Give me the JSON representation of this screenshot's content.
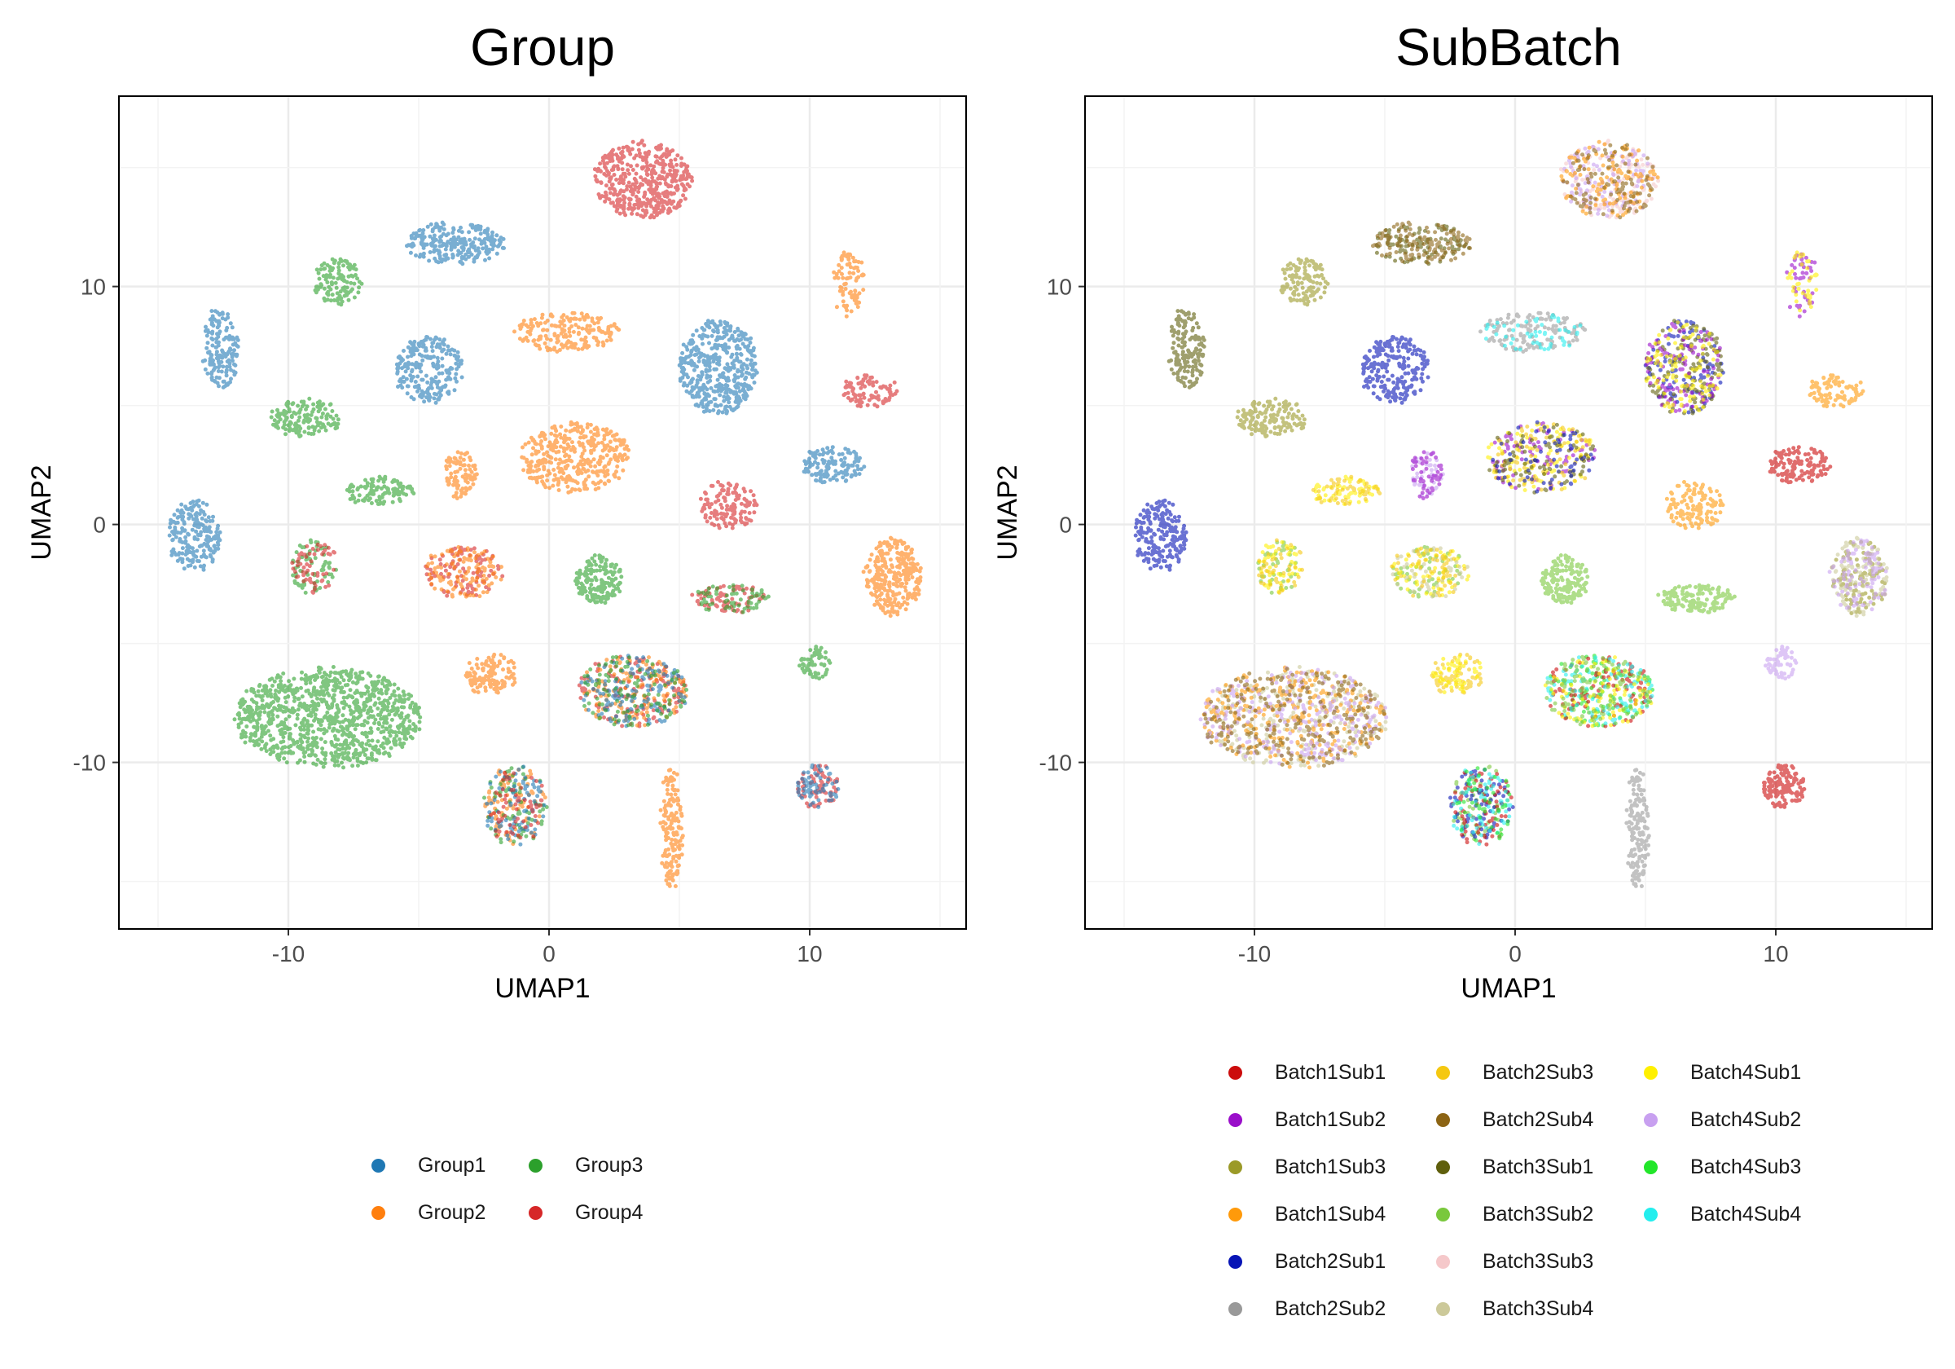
{
  "chart_data": [
    {
      "type": "scatter",
      "title": "Group",
      "xlabel": "UMAP1",
      "ylabel": "UMAP2",
      "xlim": [
        -16.5,
        16
      ],
      "ylim": [
        -17,
        18
      ],
      "x_ticks": [
        -10,
        0,
        10
      ],
      "y_ticks": [
        -10,
        0,
        10
      ],
      "tick_labels_x": [
        "-10",
        "0",
        "10"
      ],
      "tick_labels_y": [
        "-10",
        "0",
        "10"
      ],
      "grid": true,
      "legend_position": "bottom",
      "legend": [
        {
          "name": "Group1",
          "color": "#1F78B4"
        },
        {
          "name": "Group2",
          "color": "#FF7F0E"
        },
        {
          "name": "Group3",
          "color": "#2CA02C"
        },
        {
          "name": "Group4",
          "color": "#D62728"
        }
      ],
      "clusters": [
        {
          "cx": 3.6,
          "cy": 14.5,
          "rx": 1.9,
          "ry": 1.6,
          "n": 460,
          "colors": [
            "#D62728"
          ]
        },
        {
          "cx": -3.6,
          "cy": 11.8,
          "rx": 1.9,
          "ry": 0.9,
          "n": 240,
          "colors": [
            "#1F78B4"
          ]
        },
        {
          "cx": -8.1,
          "cy": 10.2,
          "rx": 0.9,
          "ry": 1.0,
          "n": 120,
          "colors": [
            "#2CA02C"
          ]
        },
        {
          "cx": 11.5,
          "cy": 10.1,
          "rx": 0.6,
          "ry": 1.4,
          "n": 90,
          "colors": [
            "#FF7F0E"
          ]
        },
        {
          "cx": -12.6,
          "cy": 7.4,
          "rx": 0.7,
          "ry": 1.7,
          "n": 160,
          "colors": [
            "#1F78B4"
          ]
        },
        {
          "cx": 0.7,
          "cy": 8.1,
          "rx": 2.0,
          "ry": 0.8,
          "n": 180,
          "colors": [
            "#FF7F0E"
          ]
        },
        {
          "cx": 6.5,
          "cy": 6.6,
          "rx": 1.5,
          "ry": 2.0,
          "n": 450,
          "colors": [
            "#1F78B4"
          ]
        },
        {
          "cx": -4.6,
          "cy": 6.5,
          "rx": 1.3,
          "ry": 1.4,
          "n": 230,
          "colors": [
            "#1F78B4"
          ]
        },
        {
          "cx": 12.3,
          "cy": 5.6,
          "rx": 1.1,
          "ry": 0.7,
          "n": 90,
          "colors": [
            "#D62728"
          ]
        },
        {
          "cx": -9.3,
          "cy": 4.5,
          "rx": 1.4,
          "ry": 0.8,
          "n": 150,
          "colors": [
            "#2CA02C"
          ]
        },
        {
          "cx": 1.0,
          "cy": 2.8,
          "rx": 2.1,
          "ry": 1.5,
          "n": 380,
          "colors": [
            "#FF7F0E"
          ]
        },
        {
          "cx": -3.4,
          "cy": 2.1,
          "rx": 0.6,
          "ry": 1.0,
          "n": 90,
          "colors": [
            "#FF7F0E"
          ]
        },
        {
          "cx": 10.9,
          "cy": 2.5,
          "rx": 1.2,
          "ry": 0.8,
          "n": 130,
          "colors": [
            "#1F78B4"
          ]
        },
        {
          "cx": -6.5,
          "cy": 1.4,
          "rx": 1.3,
          "ry": 0.6,
          "n": 110,
          "colors": [
            "#2CA02C"
          ]
        },
        {
          "cx": 6.9,
          "cy": 0.8,
          "rx": 1.1,
          "ry": 1.0,
          "n": 130,
          "colors": [
            "#D62728"
          ]
        },
        {
          "cx": -13.6,
          "cy": -0.5,
          "rx": 1.0,
          "ry": 1.5,
          "n": 200,
          "colors": [
            "#1F78B4"
          ]
        },
        {
          "cx": -9.0,
          "cy": -1.8,
          "rx": 0.9,
          "ry": 1.1,
          "n": 130,
          "colors": [
            "#2CA02C",
            "#D62728"
          ]
        },
        {
          "cx": -3.3,
          "cy": -2.0,
          "rx": 1.5,
          "ry": 1.1,
          "n": 210,
          "colors": [
            "#FF7F0E",
            "#D62728"
          ]
        },
        {
          "cx": 1.9,
          "cy": -2.3,
          "rx": 0.9,
          "ry": 1.0,
          "n": 160,
          "colors": [
            "#2CA02C"
          ]
        },
        {
          "cx": 7.0,
          "cy": -3.1,
          "rx": 1.5,
          "ry": 0.6,
          "n": 150,
          "colors": [
            "#2CA02C",
            "#D62728"
          ]
        },
        {
          "cx": 13.2,
          "cy": -2.2,
          "rx": 1.1,
          "ry": 1.6,
          "n": 300,
          "colors": [
            "#FF7F0E"
          ]
        },
        {
          "cx": 10.2,
          "cy": -5.8,
          "rx": 0.6,
          "ry": 0.7,
          "n": 60,
          "colors": [
            "#2CA02C"
          ]
        },
        {
          "cx": -2.2,
          "cy": -6.3,
          "rx": 1.0,
          "ry": 0.9,
          "n": 120,
          "colors": [
            "#FF7F0E"
          ]
        },
        {
          "cx": -8.5,
          "cy": -8.1,
          "rx": 3.6,
          "ry": 2.1,
          "n": 1000,
          "colors": [
            "#2CA02C"
          ]
        },
        {
          "cx": 3.2,
          "cy": -7.0,
          "rx": 2.1,
          "ry": 1.5,
          "n": 520,
          "colors": [
            "#D62728",
            "#1F78B4",
            "#2CA02C",
            "#FF7F0E"
          ]
        },
        {
          "cx": -1.3,
          "cy": -11.8,
          "rx": 1.2,
          "ry": 1.7,
          "n": 320,
          "colors": [
            "#2CA02C",
            "#D62728",
            "#1F78B4",
            "#FF7F0E"
          ]
        },
        {
          "cx": 4.7,
          "cy": -12.8,
          "rx": 0.4,
          "ry": 2.6,
          "n": 160,
          "colors": [
            "#FF7F0E"
          ]
        },
        {
          "cx": 10.3,
          "cy": -11.0,
          "rx": 0.8,
          "ry": 0.9,
          "n": 140,
          "colors": [
            "#1F78B4",
            "#D62728"
          ]
        }
      ]
    },
    {
      "type": "scatter",
      "title": "SubBatch",
      "xlabel": "UMAP1",
      "ylabel": "UMAP2",
      "xlim": [
        -16.5,
        16
      ],
      "ylim": [
        -17,
        18
      ],
      "x_ticks": [
        -10,
        0,
        10
      ],
      "y_ticks": [
        -10,
        0,
        10
      ],
      "tick_labels_x": [
        "-10",
        "0",
        "10"
      ],
      "tick_labels_y": [
        "-10",
        "0",
        "10"
      ],
      "grid": true,
      "legend_position": "bottom",
      "legend": [
        {
          "name": "Batch1Sub1",
          "color": "#CC0C0C"
        },
        {
          "name": "Batch1Sub2",
          "color": "#9A0ECA"
        },
        {
          "name": "Batch1Sub3",
          "color": "#9B9A28"
        },
        {
          "name": "Batch1Sub4",
          "color": "#FF9A0A"
        },
        {
          "name": "Batch2Sub1",
          "color": "#0714B6"
        },
        {
          "name": "Batch2Sub2",
          "color": "#999999"
        },
        {
          "name": "Batch2Sub3",
          "color": "#F5C810"
        },
        {
          "name": "Batch2Sub4",
          "color": "#8C6414"
        },
        {
          "name": "Batch3Sub1",
          "color": "#5F5F0C"
        },
        {
          "name": "Batch3Sub2",
          "color": "#79C83C"
        },
        {
          "name": "Batch3Sub3",
          "color": "#F5C8CA"
        },
        {
          "name": "Batch3Sub4",
          "color": "#CCC99A"
        },
        {
          "name": "Batch4Sub1",
          "color": "#FFF000"
        },
        {
          "name": "Batch4Sub2",
          "color": "#C8A0F0"
        },
        {
          "name": "Batch4Sub3",
          "color": "#22E62A"
        },
        {
          "name": "Batch4Sub4",
          "color": "#24EEEE"
        }
      ],
      "clusters": [
        {
          "cx": 3.6,
          "cy": 14.5,
          "rx": 1.9,
          "ry": 1.6,
          "n": 460,
          "colors": [
            "#C8A0F0",
            "#8C6414",
            "#F5C8CA",
            "#FF9A0A"
          ]
        },
        {
          "cx": -3.6,
          "cy": 11.8,
          "rx": 1.9,
          "ry": 0.9,
          "n": 240,
          "colors": [
            "#5F5F0C",
            "#8C6414"
          ]
        },
        {
          "cx": -8.1,
          "cy": 10.2,
          "rx": 0.9,
          "ry": 1.0,
          "n": 120,
          "colors": [
            "#9B9A28"
          ]
        },
        {
          "cx": 11.0,
          "cy": 10.1,
          "rx": 0.6,
          "ry": 1.4,
          "n": 90,
          "colors": [
            "#9A0ECA",
            "#FFF000"
          ]
        },
        {
          "cx": -12.6,
          "cy": 7.4,
          "rx": 0.7,
          "ry": 1.7,
          "n": 160,
          "colors": [
            "#5F5F0C"
          ]
        },
        {
          "cx": 0.7,
          "cy": 8.1,
          "rx": 2.0,
          "ry": 0.8,
          "n": 180,
          "colors": [
            "#999999",
            "#999999",
            "#24EEEE"
          ]
        },
        {
          "cx": 6.5,
          "cy": 6.6,
          "rx": 1.5,
          "ry": 2.0,
          "n": 450,
          "colors": [
            "#9A0ECA",
            "#FFF000",
            "#5F5F0C",
            "#0714B6"
          ]
        },
        {
          "cx": -4.6,
          "cy": 6.5,
          "rx": 1.3,
          "ry": 1.4,
          "n": 230,
          "colors": [
            "#0714B6"
          ]
        },
        {
          "cx": 12.3,
          "cy": 5.6,
          "rx": 1.1,
          "ry": 0.7,
          "n": 90,
          "colors": [
            "#FF9A0A"
          ]
        },
        {
          "cx": -9.3,
          "cy": 4.5,
          "rx": 1.4,
          "ry": 0.8,
          "n": 150,
          "colors": [
            "#9B9A28"
          ]
        },
        {
          "cx": 1.0,
          "cy": 2.8,
          "rx": 2.1,
          "ry": 1.5,
          "n": 380,
          "colors": [
            "#0714B6",
            "#9A0ECA",
            "#5F5F0C",
            "#FFF000",
            "#F5C810"
          ]
        },
        {
          "cx": -3.4,
          "cy": 2.1,
          "rx": 0.6,
          "ry": 1.0,
          "n": 90,
          "colors": [
            "#9A0ECA",
            "#C8A0F0"
          ]
        },
        {
          "cx": 10.9,
          "cy": 2.5,
          "rx": 1.2,
          "ry": 0.8,
          "n": 130,
          "colors": [
            "#CC0C0C"
          ]
        },
        {
          "cx": -6.5,
          "cy": 1.4,
          "rx": 1.3,
          "ry": 0.6,
          "n": 110,
          "colors": [
            "#F5C810",
            "#FFF000"
          ]
        },
        {
          "cx": 6.9,
          "cy": 0.8,
          "rx": 1.1,
          "ry": 1.0,
          "n": 130,
          "colors": [
            "#FF9A0A"
          ]
        },
        {
          "cx": -13.6,
          "cy": -0.5,
          "rx": 1.0,
          "ry": 1.5,
          "n": 200,
          "colors": [
            "#0714B6"
          ]
        },
        {
          "cx": -9.0,
          "cy": -1.8,
          "rx": 0.9,
          "ry": 1.1,
          "n": 130,
          "colors": [
            "#F5C810",
            "#FFF000",
            "#79C83C"
          ]
        },
        {
          "cx": -3.3,
          "cy": -2.0,
          "rx": 1.5,
          "ry": 1.1,
          "n": 210,
          "colors": [
            "#FFF000",
            "#F5C810",
            "#79C83C",
            "#CCC99A"
          ]
        },
        {
          "cx": 1.9,
          "cy": -2.3,
          "rx": 0.9,
          "ry": 1.0,
          "n": 160,
          "colors": [
            "#79C83C"
          ]
        },
        {
          "cx": 7.0,
          "cy": -3.1,
          "rx": 1.5,
          "ry": 0.6,
          "n": 150,
          "colors": [
            "#79C83C"
          ]
        },
        {
          "cx": 13.2,
          "cy": -2.2,
          "rx": 1.1,
          "ry": 1.6,
          "n": 300,
          "colors": [
            "#9B9A28",
            "#CCC99A",
            "#C8A0F0"
          ]
        },
        {
          "cx": 10.2,
          "cy": -5.8,
          "rx": 0.6,
          "ry": 0.7,
          "n": 60,
          "colors": [
            "#C8A0F0"
          ]
        },
        {
          "cx": -2.2,
          "cy": -6.3,
          "rx": 1.0,
          "ry": 0.9,
          "n": 120,
          "colors": [
            "#FFF000",
            "#F5C810"
          ]
        },
        {
          "cx": -8.5,
          "cy": -8.1,
          "rx": 3.6,
          "ry": 2.1,
          "n": 1000,
          "colors": [
            "#FF9A0A",
            "#8C6414",
            "#C8A0F0",
            "#CCC99A"
          ]
        },
        {
          "cx": 3.2,
          "cy": -7.0,
          "rx": 2.1,
          "ry": 1.5,
          "n": 520,
          "colors": [
            "#22E62A",
            "#24EEEE",
            "#79C83C",
            "#CC0C0C",
            "#FFF000"
          ]
        },
        {
          "cx": -1.3,
          "cy": -11.8,
          "rx": 1.2,
          "ry": 1.7,
          "n": 320,
          "colors": [
            "#79C83C",
            "#22E62A",
            "#24EEEE",
            "#CC0C0C",
            "#0714B6"
          ]
        },
        {
          "cx": 4.7,
          "cy": -12.8,
          "rx": 0.4,
          "ry": 2.6,
          "n": 160,
          "colors": [
            "#999999"
          ]
        },
        {
          "cx": 10.3,
          "cy": -11.0,
          "rx": 0.8,
          "ry": 0.9,
          "n": 140,
          "colors": [
            "#CC0C0C"
          ]
        }
      ]
    }
  ]
}
